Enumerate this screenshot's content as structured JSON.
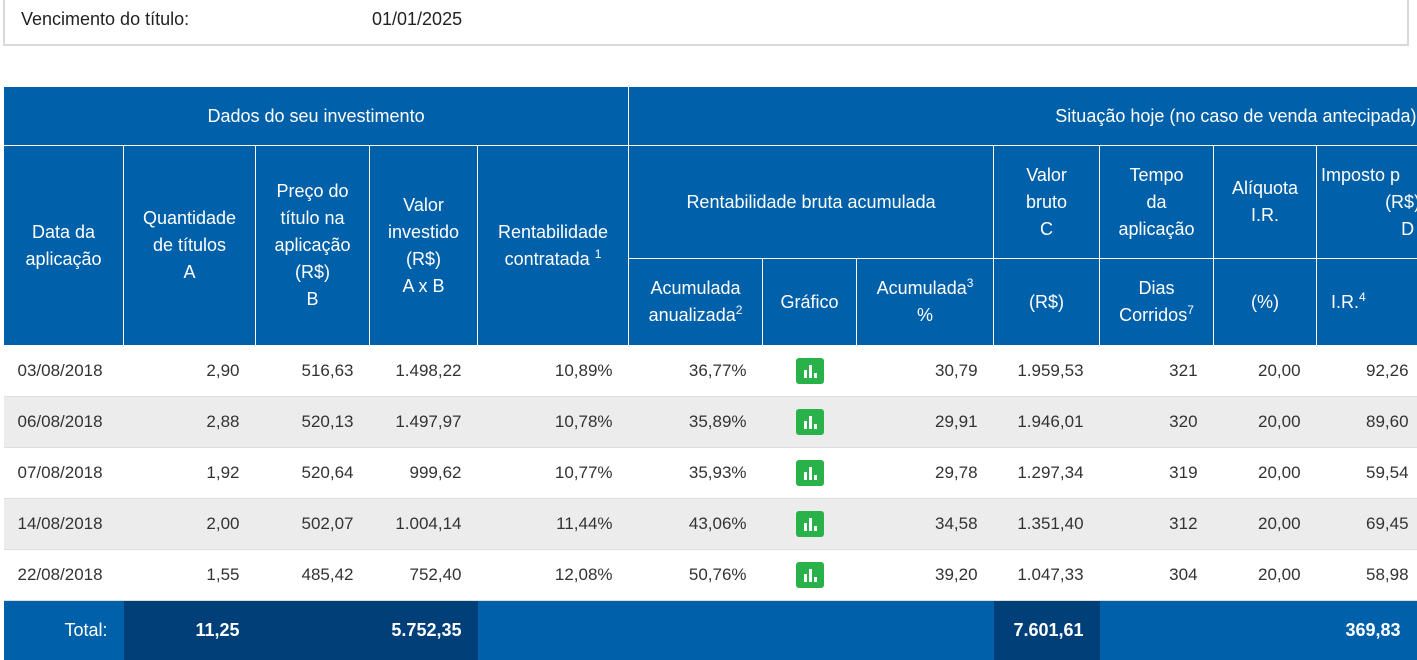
{
  "maturity": {
    "label": "Vencimento do título:",
    "value": "01/01/2025"
  },
  "headers": {
    "group_investment": "Dados do seu investimento",
    "group_today": "Situação hoje (no caso de venda antecipada)",
    "date": [
      "Data da",
      "aplicação"
    ],
    "quantity": [
      "Quantidade",
      "de títulos",
      "A"
    ],
    "price": [
      "Preço do",
      "título na",
      "aplicação",
      "(R$)",
      "B"
    ],
    "invested": [
      "Valor",
      "investido",
      "(R$)",
      "A x B"
    ],
    "contracted": [
      "Rentabilidade",
      "contratada"
    ],
    "contracted_note": "1",
    "gross_return": "Rentabilidade bruta acumulada",
    "gross_value": [
      "Valor",
      "bruto",
      "C"
    ],
    "time": [
      "Tempo",
      "da",
      "aplicação"
    ],
    "tax_rate": [
      "Alíquota",
      "I.R."
    ],
    "tax": [
      "Imposto p",
      "(R$)",
      "D"
    ],
    "annualized": [
      "Acumulada",
      "anualizada"
    ],
    "annualized_note": "2",
    "chart": "Gráfico",
    "accumulated": "Acumulada",
    "accumulated_note": "3",
    "accumulated_unit": "%",
    "gross_value_unit": "(R$)",
    "days": [
      "Dias",
      "Corridos"
    ],
    "days_note": "7",
    "tax_rate_unit": "(%)",
    "tax_unit": "I.R.",
    "tax_note": "4"
  },
  "rows": [
    {
      "date": "03/08/2018",
      "quantity": "2,90",
      "price": "516,63",
      "invested": "1.498,22",
      "contracted": "10,89%",
      "annualized": "36,77%",
      "accumulated": "30,79",
      "gross_value": "1.959,53",
      "days": "321",
      "tax_rate": "20,00",
      "tax": "92,26"
    },
    {
      "date": "06/08/2018",
      "quantity": "2,88",
      "price": "520,13",
      "invested": "1.497,97",
      "contracted": "10,78%",
      "annualized": "35,89%",
      "accumulated": "29,91",
      "gross_value": "1.946,01",
      "days": "320",
      "tax_rate": "20,00",
      "tax": "89,60"
    },
    {
      "date": "07/08/2018",
      "quantity": "1,92",
      "price": "520,64",
      "invested": "999,62",
      "contracted": "10,77%",
      "annualized": "35,93%",
      "accumulated": "29,78",
      "gross_value": "1.297,34",
      "days": "319",
      "tax_rate": "20,00",
      "tax": "59,54"
    },
    {
      "date": "14/08/2018",
      "quantity": "2,00",
      "price": "502,07",
      "invested": "1.004,14",
      "contracted": "11,44%",
      "annualized": "43,06%",
      "accumulated": "34,58",
      "gross_value": "1.351,40",
      "days": "312",
      "tax_rate": "20,00",
      "tax": "69,45"
    },
    {
      "date": "22/08/2018",
      "quantity": "1,55",
      "price": "485,42",
      "invested": "752,40",
      "contracted": "12,08%",
      "annualized": "50,76%",
      "accumulated": "39,20",
      "gross_value": "1.047,33",
      "days": "304",
      "tax_rate": "20,00",
      "tax": "58,98"
    }
  ],
  "totals": {
    "label": "Total:",
    "quantity": "11,25",
    "invested": "5.752,35",
    "gross_value": "7.601,61",
    "tax": "369,83"
  },
  "colors": {
    "header_blue": "#0060a9",
    "total_dark": "#003f78",
    "chart_icon": "#29b24a",
    "row_alt": "#ececec"
  },
  "icons": {
    "chart": "bar-chart-icon"
  }
}
